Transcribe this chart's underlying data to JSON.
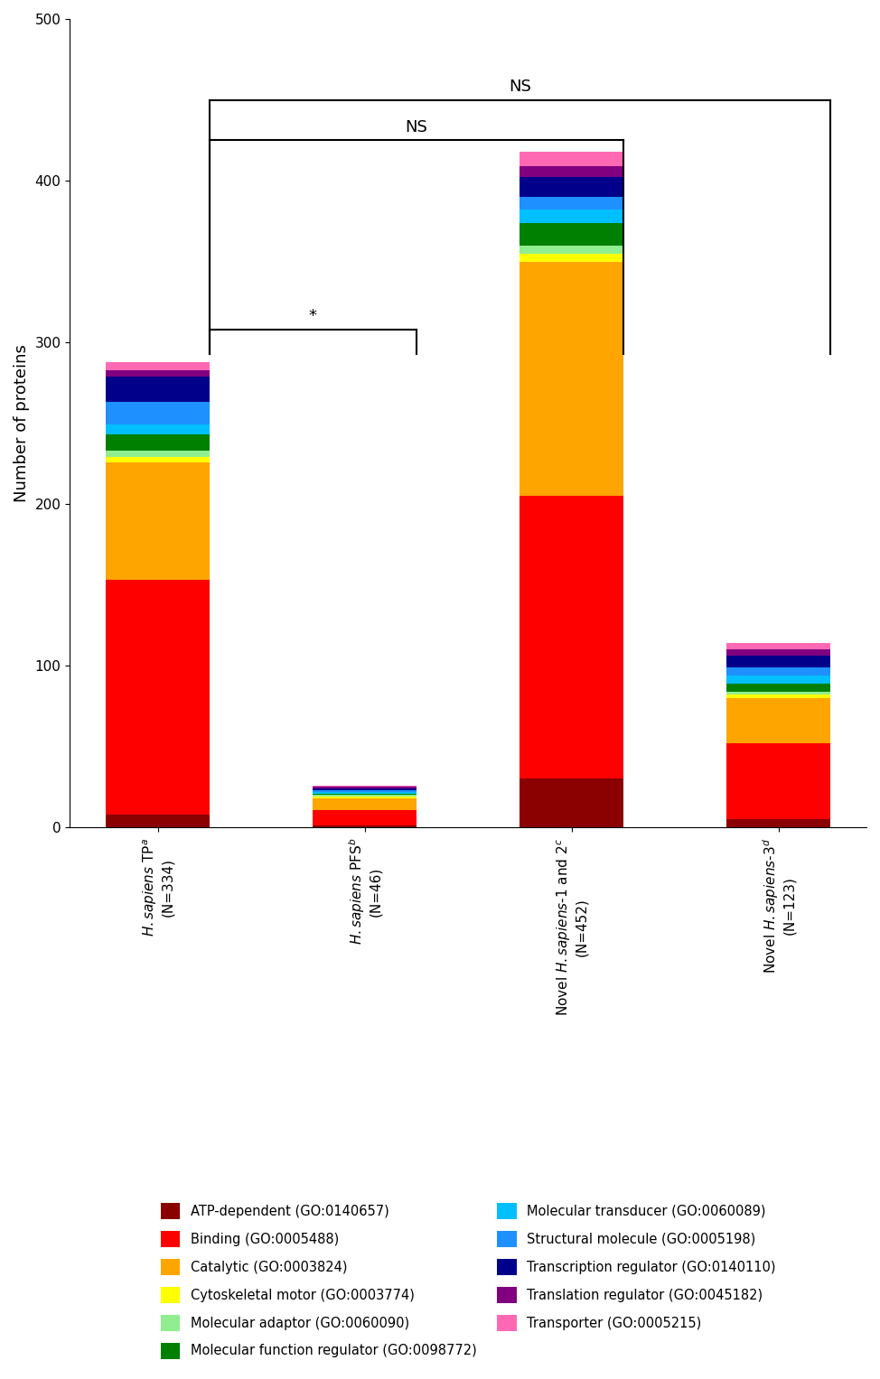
{
  "categories": [
    "H. sapiens TP$^a$\n(N=334)",
    "H. sapiens PFS$^b$\n(N=46)",
    "Novel H. sapiens-1 and 2$^c$\n(N=452)",
    "Novel H. sapiens-3$^d$\n(N=123)"
  ],
  "segment_order": [
    "ATP-dependent (GO:0140657)",
    "Binding (GO:0005488)",
    "Catalytic (GO:0003824)",
    "Cytoskeletal motor (GO:0003774)",
    "Molecular adaptor (GO:0060090)",
    "Molecular function regulator (GO:0098772)",
    "Molecular transducer (GO:0060089)",
    "Structural molecule (GO:0005198)",
    "Transcription regulator (GO:0140110)",
    "Translation regulator (GO:0045182)",
    "Transporter (GO:0005215)"
  ],
  "segments": {
    "ATP-dependent (GO:0140657)": {
      "color": "#8B0000",
      "values": [
        8,
        1,
        30,
        5
      ]
    },
    "Binding (GO:0005488)": {
      "color": "#FF0000",
      "values": [
        145,
        10,
        175,
        47
      ]
    },
    "Catalytic (GO:0003824)": {
      "color": "#FFA500",
      "values": [
        73,
        7,
        145,
        28
      ]
    },
    "Cytoskeletal motor (GO:0003774)": {
      "color": "#FFFF00",
      "values": [
        3,
        1,
        5,
        2
      ]
    },
    "Molecular adaptor (GO:0060090)": {
      "color": "#90EE90",
      "values": [
        4,
        1,
        5,
        2
      ]
    },
    "Molecular function regulator (GO:0098772)": {
      "color": "#008000",
      "values": [
        10,
        1,
        14,
        5
      ]
    },
    "Molecular transducer (GO:0060089)": {
      "color": "#00BFFF",
      "values": [
        6,
        1,
        8,
        5
      ]
    },
    "Structural molecule (GO:0005198)": {
      "color": "#1E90FF",
      "values": [
        14,
        1,
        8,
        5
      ]
    },
    "Transcription regulator (GO:0140110)": {
      "color": "#00008B",
      "values": [
        16,
        1,
        12,
        7
      ]
    },
    "Translation regulator (GO:0045182)": {
      "color": "#800080",
      "values": [
        4,
        1,
        7,
        4
      ]
    },
    "Transporter (GO:0005215)": {
      "color": "#FF69B4",
      "values": [
        5,
        1,
        9,
        4
      ]
    }
  },
  "ylim": [
    0,
    500
  ],
  "yticks": [
    0,
    100,
    200,
    300,
    400,
    500
  ],
  "ylabel": "Number of proteins",
  "bar_width": 0.5
}
